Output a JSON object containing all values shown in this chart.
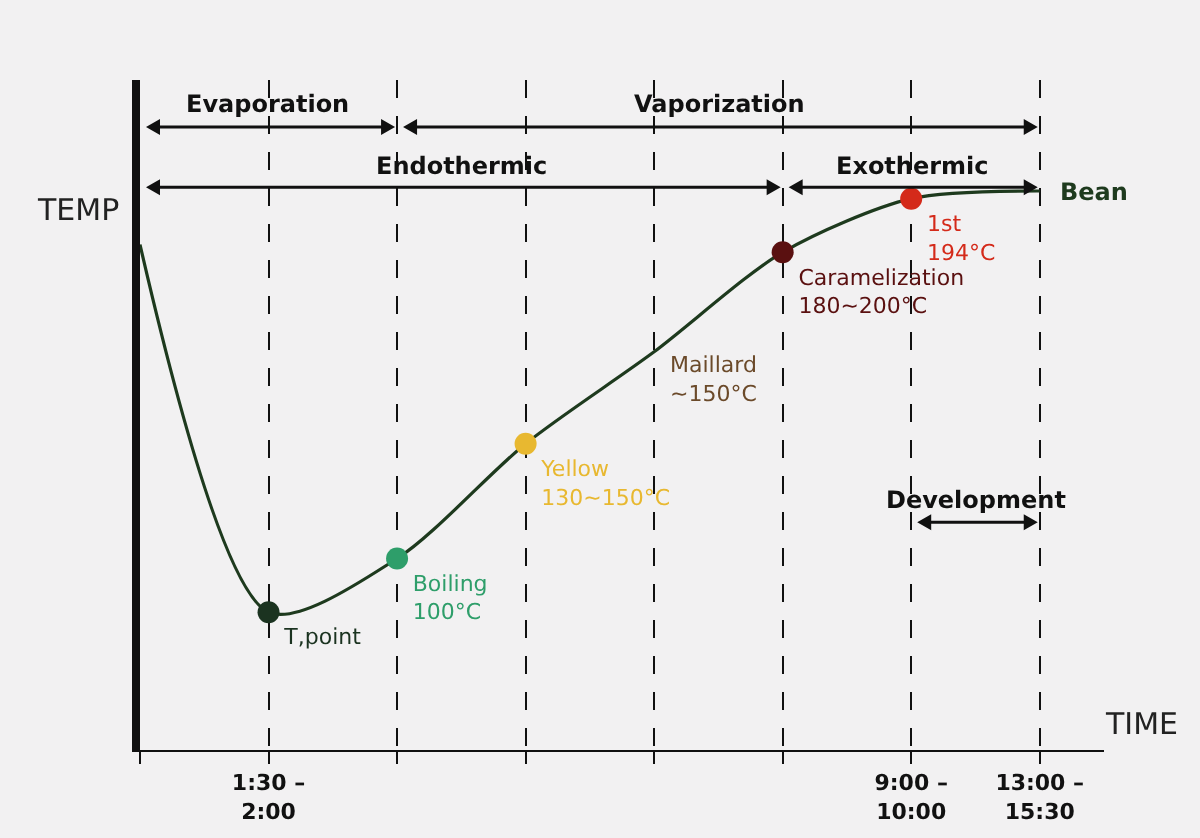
{
  "chart_data": {
    "type": "line",
    "ylabel": "TEMP",
    "xlabel": "TIME",
    "tick_labels": "x",
    "ylim": [
      50,
      225
    ],
    "categories": [
      null,
      "1:30 – 2:00",
      null,
      null,
      null,
      null,
      "9:00 – 10:00",
      "13:00 – 15:30"
    ],
    "grid": "x",
    "line_style": "solid",
    "series": [
      {
        "name": "Bean",
        "color": "#1e3a1e",
        "values": [
          182,
          86,
          100,
          130,
          154,
          180,
          194,
          196
        ]
      },
      {
        "type": "scatter",
        "values": [
          null,
          86,
          100,
          130,
          null,
          180,
          194,
          null
        ],
        "colors": [
          null,
          "#1b3320",
          "#2e9e6a",
          "#e8b830",
          null,
          "#5a1010",
          "#d42a1a",
          null
        ],
        "value_labels": [
          null,
          "T,point",
          "Boiling\n100°C",
          "Yellow\n130~150°C",
          null,
          "Caramelization\n180~200°C",
          "1st\n194°C",
          null
        ]
      }
    ],
    "annotations": [
      "Evaporation",
      "Vaporization",
      "Endothermic",
      "Exothermic",
      "Development",
      "Maillard\n~150°C"
    ]
  }
}
